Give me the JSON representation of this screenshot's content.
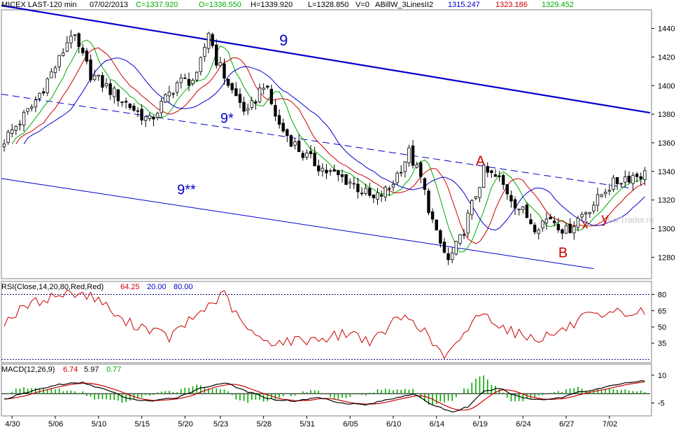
{
  "header": {
    "symbol": "MICEX LAST-120 min",
    "date": "07/02/2013",
    "close": "C=1337.920",
    "open": "O=1336.550",
    "high": "H=1339.920",
    "low": "L=1328.850",
    "volume": "V=0",
    "indicator": "ABillW_3LinesII2",
    "ind_v1": "1315.247",
    "ind_v2": "1323.186",
    "ind_v3": "1329.452"
  },
  "rsi_header": {
    "label": "RSI(Close,14,20,80,Red,Red)",
    "value": "64.25",
    "lower": "20.00",
    "upper": "80.00"
  },
  "macd_header": {
    "label": "MACD(12,26,9)",
    "v1": "6.74",
    "v2": "5.97",
    "v3": "0.77"
  },
  "watermark": "ForTrader.ru",
  "colors": {
    "blue": "#0000cc",
    "red": "#cc0000",
    "green": "#00aa00",
    "grid": "#000080",
    "black": "#000000"
  },
  "chart_data": [
    {
      "type": "candlestick",
      "x_ticks": [
        "4/30",
        "5/06",
        "5/10",
        "5/15",
        "5/20",
        "5/23",
        "5/28",
        "5/31",
        "6/05",
        "6/10",
        "6/14",
        "6/19",
        "6/24",
        "6/27",
        "7/02"
      ],
      "y_ticks": [
        1280,
        1300,
        1320,
        1340,
        1360,
        1380,
        1400,
        1420,
        1440
      ],
      "ylim": [
        1265,
        1453
      ],
      "close_anchors": [
        [
          0,
          1362
        ],
        [
          7,
          1385
        ],
        [
          14,
          1418
        ],
        [
          17,
          1437
        ],
        [
          22,
          1408
        ],
        [
          30,
          1390
        ],
        [
          37,
          1375
        ],
        [
          44,
          1402
        ],
        [
          49,
          1405
        ],
        [
          52,
          1438
        ],
        [
          54,
          1418
        ],
        [
          58,
          1396
        ],
        [
          62,
          1380
        ],
        [
          66,
          1402
        ],
        [
          70,
          1372
        ],
        [
          76,
          1352
        ],
        [
          82,
          1340
        ],
        [
          88,
          1333
        ],
        [
          94,
          1320
        ],
        [
          98,
          1328
        ],
        [
          103,
          1353
        ],
        [
          106,
          1335
        ],
        [
          110,
          1295
        ],
        [
          113,
          1277
        ],
        [
          116,
          1292
        ],
        [
          122,
          1340
        ],
        [
          126,
          1334
        ],
        [
          130,
          1318
        ],
        [
          135,
          1302
        ],
        [
          139,
          1308
        ],
        [
          143,
          1298
        ],
        [
          147,
          1310
        ],
        [
          151,
          1320
        ],
        [
          153,
          1328
        ],
        [
          158,
          1336
        ],
        [
          162,
          1338
        ]
      ],
      "annotations": [
        {
          "text": "9",
          "color": "#0000cc"
        },
        {
          "text": "9*",
          "color": "#0000cc"
        },
        {
          "text": "9**",
          "color": "#0000cc"
        },
        {
          "text": "A",
          "color": "#cc0000"
        },
        {
          "text": "B",
          "color": "#cc0000"
        },
        {
          "text": "x",
          "color": "#cc0000"
        },
        {
          "text": "y",
          "color": "#cc0000"
        }
      ]
    },
    {
      "type": "line",
      "name": "RSI",
      "y_ticks": [
        35,
        50,
        65,
        80
      ],
      "ylim": [
        17,
        92
      ],
      "hlines": [
        20,
        80
      ],
      "anchors": [
        [
          0,
          55
        ],
        [
          6,
          70
        ],
        [
          12,
          78
        ],
        [
          18,
          82
        ],
        [
          24,
          76
        ],
        [
          30,
          55
        ],
        [
          36,
          50
        ],
        [
          42,
          40
        ],
        [
          47,
          55
        ],
        [
          52,
          70
        ],
        [
          56,
          80
        ],
        [
          60,
          55
        ],
        [
          65,
          38
        ],
        [
          70,
          36
        ],
        [
          76,
          38
        ],
        [
          82,
          40
        ],
        [
          88,
          45
        ],
        [
          94,
          36
        ],
        [
          100,
          58
        ],
        [
          104,
          58
        ],
        [
          108,
          40
        ],
        [
          112,
          22
        ],
        [
          116,
          35
        ],
        [
          120,
          62
        ],
        [
          124,
          58
        ],
        [
          128,
          48
        ],
        [
          132,
          42
        ],
        [
          136,
          40
        ],
        [
          140,
          44
        ],
        [
          144,
          50
        ],
        [
          148,
          60
        ],
        [
          152,
          57
        ],
        [
          156,
          63
        ],
        [
          160,
          62
        ],
        [
          162,
          64
        ]
      ]
    },
    {
      "type": "line",
      "name": "MACD",
      "y_ticks": [
        -5,
        10
      ],
      "ylim": [
        -12,
        16
      ],
      "anchors": [
        [
          0,
          -3
        ],
        [
          8,
          2
        ],
        [
          14,
          5
        ],
        [
          20,
          6
        ],
        [
          26,
          2
        ],
        [
          32,
          -3
        ],
        [
          38,
          -4
        ],
        [
          44,
          -2
        ],
        [
          50,
          3
        ],
        [
          56,
          6
        ],
        [
          62,
          1
        ],
        [
          68,
          -3
        ],
        [
          74,
          -4
        ],
        [
          80,
          -2
        ],
        [
          86,
          -5
        ],
        [
          92,
          -6
        ],
        [
          98,
          -3
        ],
        [
          104,
          0
        ],
        [
          108,
          -5
        ],
        [
          114,
          -10
        ],
        [
          118,
          -7
        ],
        [
          122,
          1
        ],
        [
          126,
          3
        ],
        [
          130,
          -1
        ],
        [
          134,
          -3
        ],
        [
          138,
          -3
        ],
        [
          142,
          -2
        ],
        [
          146,
          1
        ],
        [
          150,
          2
        ],
        [
          154,
          4
        ],
        [
          158,
          6
        ],
        [
          162,
          6.7
        ]
      ]
    }
  ]
}
